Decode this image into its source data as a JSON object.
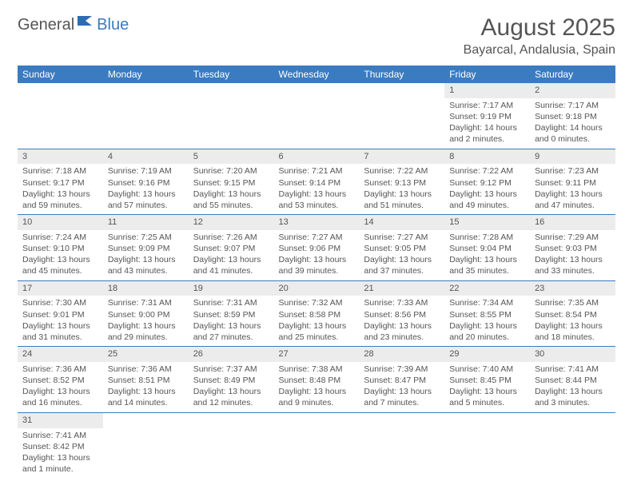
{
  "logo": {
    "part1": "General",
    "part2": "Blue"
  },
  "title": "August 2025",
  "location": "Bayarcal, Andalusia, Spain",
  "colors": {
    "header_bg": "#3b7bbf",
    "header_text": "#ffffff",
    "daynum_bg": "#ececec",
    "row_border": "#3b7bbf",
    "body_text": "#555555",
    "background": "#ffffff"
  },
  "weekdays": [
    "Sunday",
    "Monday",
    "Tuesday",
    "Wednesday",
    "Thursday",
    "Friday",
    "Saturday"
  ],
  "weeks": [
    {
      "days": [
        null,
        null,
        null,
        null,
        null,
        {
          "n": "1",
          "sunrise": "Sunrise: 7:17 AM",
          "sunset": "Sunset: 9:19 PM",
          "day1": "Daylight: 14 hours",
          "day2": "and 2 minutes."
        },
        {
          "n": "2",
          "sunrise": "Sunrise: 7:17 AM",
          "sunset": "Sunset: 9:18 PM",
          "day1": "Daylight: 14 hours",
          "day2": "and 0 minutes."
        }
      ]
    },
    {
      "days": [
        {
          "n": "3",
          "sunrise": "Sunrise: 7:18 AM",
          "sunset": "Sunset: 9:17 PM",
          "day1": "Daylight: 13 hours",
          "day2": "and 59 minutes."
        },
        {
          "n": "4",
          "sunrise": "Sunrise: 7:19 AM",
          "sunset": "Sunset: 9:16 PM",
          "day1": "Daylight: 13 hours",
          "day2": "and 57 minutes."
        },
        {
          "n": "5",
          "sunrise": "Sunrise: 7:20 AM",
          "sunset": "Sunset: 9:15 PM",
          "day1": "Daylight: 13 hours",
          "day2": "and 55 minutes."
        },
        {
          "n": "6",
          "sunrise": "Sunrise: 7:21 AM",
          "sunset": "Sunset: 9:14 PM",
          "day1": "Daylight: 13 hours",
          "day2": "and 53 minutes."
        },
        {
          "n": "7",
          "sunrise": "Sunrise: 7:22 AM",
          "sunset": "Sunset: 9:13 PM",
          "day1": "Daylight: 13 hours",
          "day2": "and 51 minutes."
        },
        {
          "n": "8",
          "sunrise": "Sunrise: 7:22 AM",
          "sunset": "Sunset: 9:12 PM",
          "day1": "Daylight: 13 hours",
          "day2": "and 49 minutes."
        },
        {
          "n": "9",
          "sunrise": "Sunrise: 7:23 AM",
          "sunset": "Sunset: 9:11 PM",
          "day1": "Daylight: 13 hours",
          "day2": "and 47 minutes."
        }
      ]
    },
    {
      "days": [
        {
          "n": "10",
          "sunrise": "Sunrise: 7:24 AM",
          "sunset": "Sunset: 9:10 PM",
          "day1": "Daylight: 13 hours",
          "day2": "and 45 minutes."
        },
        {
          "n": "11",
          "sunrise": "Sunrise: 7:25 AM",
          "sunset": "Sunset: 9:09 PM",
          "day1": "Daylight: 13 hours",
          "day2": "and 43 minutes."
        },
        {
          "n": "12",
          "sunrise": "Sunrise: 7:26 AM",
          "sunset": "Sunset: 9:07 PM",
          "day1": "Daylight: 13 hours",
          "day2": "and 41 minutes."
        },
        {
          "n": "13",
          "sunrise": "Sunrise: 7:27 AM",
          "sunset": "Sunset: 9:06 PM",
          "day1": "Daylight: 13 hours",
          "day2": "and 39 minutes."
        },
        {
          "n": "14",
          "sunrise": "Sunrise: 7:27 AM",
          "sunset": "Sunset: 9:05 PM",
          "day1": "Daylight: 13 hours",
          "day2": "and 37 minutes."
        },
        {
          "n": "15",
          "sunrise": "Sunrise: 7:28 AM",
          "sunset": "Sunset: 9:04 PM",
          "day1": "Daylight: 13 hours",
          "day2": "and 35 minutes."
        },
        {
          "n": "16",
          "sunrise": "Sunrise: 7:29 AM",
          "sunset": "Sunset: 9:03 PM",
          "day1": "Daylight: 13 hours",
          "day2": "and 33 minutes."
        }
      ]
    },
    {
      "days": [
        {
          "n": "17",
          "sunrise": "Sunrise: 7:30 AM",
          "sunset": "Sunset: 9:01 PM",
          "day1": "Daylight: 13 hours",
          "day2": "and 31 minutes."
        },
        {
          "n": "18",
          "sunrise": "Sunrise: 7:31 AM",
          "sunset": "Sunset: 9:00 PM",
          "day1": "Daylight: 13 hours",
          "day2": "and 29 minutes."
        },
        {
          "n": "19",
          "sunrise": "Sunrise: 7:31 AM",
          "sunset": "Sunset: 8:59 PM",
          "day1": "Daylight: 13 hours",
          "day2": "and 27 minutes."
        },
        {
          "n": "20",
          "sunrise": "Sunrise: 7:32 AM",
          "sunset": "Sunset: 8:58 PM",
          "day1": "Daylight: 13 hours",
          "day2": "and 25 minutes."
        },
        {
          "n": "21",
          "sunrise": "Sunrise: 7:33 AM",
          "sunset": "Sunset: 8:56 PM",
          "day1": "Daylight: 13 hours",
          "day2": "and 23 minutes."
        },
        {
          "n": "22",
          "sunrise": "Sunrise: 7:34 AM",
          "sunset": "Sunset: 8:55 PM",
          "day1": "Daylight: 13 hours",
          "day2": "and 20 minutes."
        },
        {
          "n": "23",
          "sunrise": "Sunrise: 7:35 AM",
          "sunset": "Sunset: 8:54 PM",
          "day1": "Daylight: 13 hours",
          "day2": "and 18 minutes."
        }
      ]
    },
    {
      "days": [
        {
          "n": "24",
          "sunrise": "Sunrise: 7:36 AM",
          "sunset": "Sunset: 8:52 PM",
          "day1": "Daylight: 13 hours",
          "day2": "and 16 minutes."
        },
        {
          "n": "25",
          "sunrise": "Sunrise: 7:36 AM",
          "sunset": "Sunset: 8:51 PM",
          "day1": "Daylight: 13 hours",
          "day2": "and 14 minutes."
        },
        {
          "n": "26",
          "sunrise": "Sunrise: 7:37 AM",
          "sunset": "Sunset: 8:49 PM",
          "day1": "Daylight: 13 hours",
          "day2": "and 12 minutes."
        },
        {
          "n": "27",
          "sunrise": "Sunrise: 7:38 AM",
          "sunset": "Sunset: 8:48 PM",
          "day1": "Daylight: 13 hours",
          "day2": "and 9 minutes."
        },
        {
          "n": "28",
          "sunrise": "Sunrise: 7:39 AM",
          "sunset": "Sunset: 8:47 PM",
          "day1": "Daylight: 13 hours",
          "day2": "and 7 minutes."
        },
        {
          "n": "29",
          "sunrise": "Sunrise: 7:40 AM",
          "sunset": "Sunset: 8:45 PM",
          "day1": "Daylight: 13 hours",
          "day2": "and 5 minutes."
        },
        {
          "n": "30",
          "sunrise": "Sunrise: 7:41 AM",
          "sunset": "Sunset: 8:44 PM",
          "day1": "Daylight: 13 hours",
          "day2": "and 3 minutes."
        }
      ]
    },
    {
      "days": [
        {
          "n": "31",
          "sunrise": "Sunrise: 7:41 AM",
          "sunset": "Sunset: 8:42 PM",
          "day1": "Daylight: 13 hours",
          "day2": "and 1 minute."
        },
        null,
        null,
        null,
        null,
        null,
        null
      ]
    }
  ]
}
